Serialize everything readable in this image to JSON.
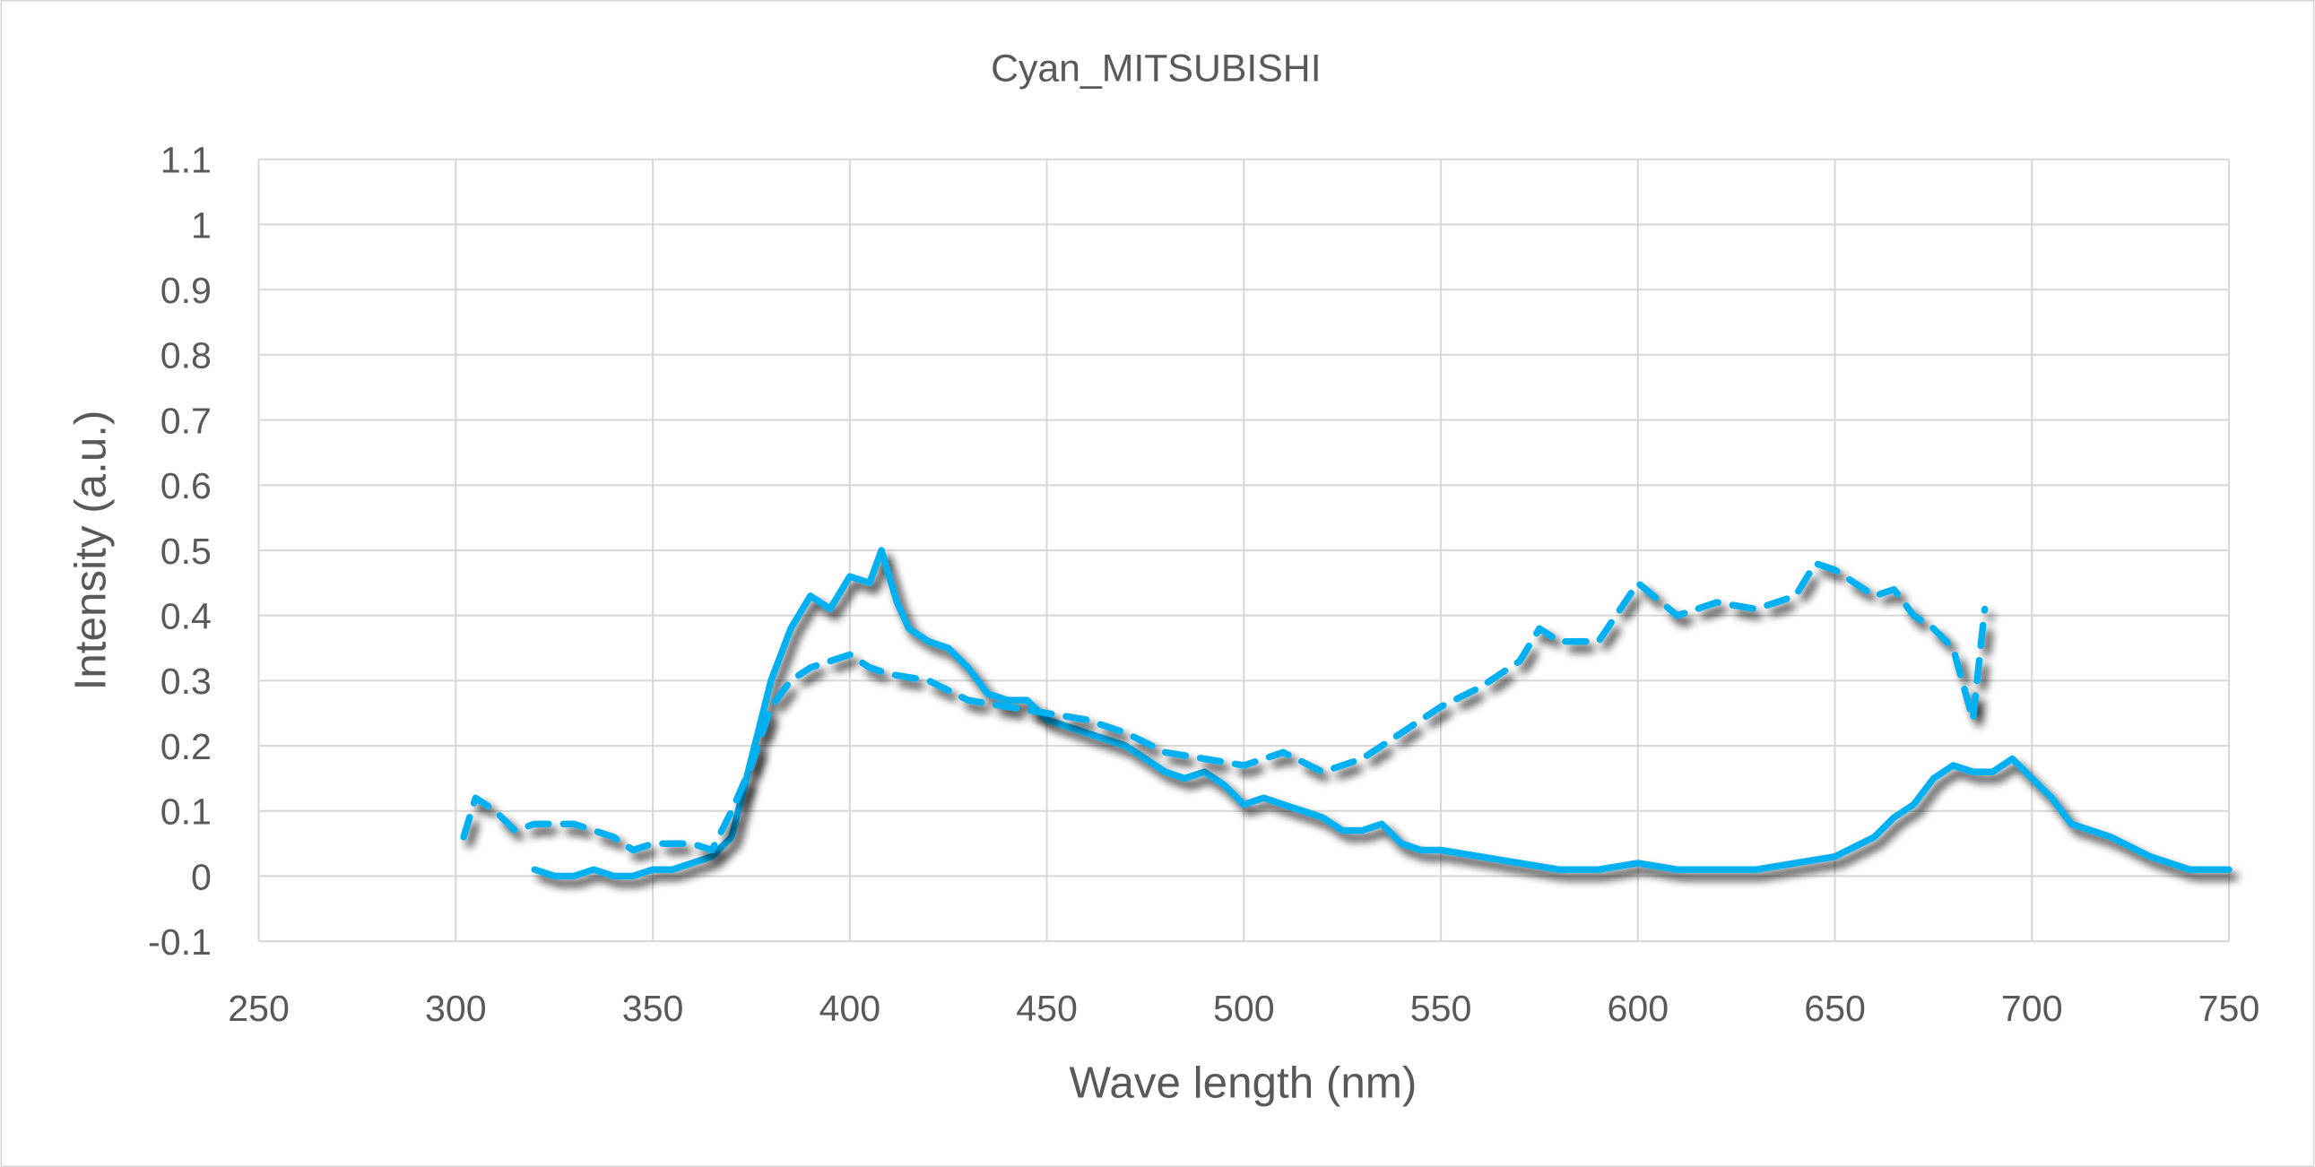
{
  "chart_data": {
    "type": "line",
    "title": "Cyan_MITSUBISHI",
    "xlabel": "Wave length (nm)",
    "ylabel": "Intensity (a.u.)",
    "xlim": [
      250,
      750
    ],
    "ylim": [
      -0.1,
      1.1
    ],
    "xticks": [
      "250",
      "300",
      "350",
      "400",
      "450",
      "500",
      "550",
      "600",
      "650",
      "700",
      "750"
    ],
    "yticks": [
      "-0.1",
      "0",
      "0.1",
      "0.2",
      "0.3",
      "0.4",
      "0.5",
      "0.6",
      "0.7",
      "0.8",
      "0.9",
      "1",
      "1.1"
    ],
    "grid": true,
    "line_color": "#00b0f0",
    "series": [
      {
        "name": "solid",
        "style": "solid",
        "x": [
          320,
          325,
          330,
          335,
          340,
          345,
          350,
          355,
          360,
          365,
          370,
          375,
          380,
          385,
          390,
          395,
          400,
          405,
          408,
          412,
          415,
          420,
          425,
          430,
          435,
          440,
          445,
          450,
          455,
          460,
          465,
          470,
          475,
          480,
          485,
          490,
          495,
          500,
          505,
          510,
          515,
          520,
          525,
          530,
          535,
          540,
          545,
          550,
          560,
          570,
          580,
          590,
          600,
          610,
          620,
          630,
          640,
          650,
          660,
          665,
          670,
          675,
          680,
          685,
          690,
          695,
          700,
          705,
          710,
          720,
          730,
          740,
          750
        ],
        "y": [
          0.01,
          0.0,
          0.0,
          0.01,
          0.0,
          0.0,
          0.01,
          0.01,
          0.02,
          0.03,
          0.06,
          0.18,
          0.3,
          0.38,
          0.43,
          0.41,
          0.46,
          0.45,
          0.5,
          0.42,
          0.38,
          0.36,
          0.35,
          0.32,
          0.28,
          0.27,
          0.27,
          0.24,
          0.23,
          0.22,
          0.21,
          0.2,
          0.18,
          0.16,
          0.15,
          0.16,
          0.14,
          0.11,
          0.12,
          0.11,
          0.1,
          0.09,
          0.07,
          0.07,
          0.08,
          0.05,
          0.04,
          0.04,
          0.03,
          0.02,
          0.01,
          0.01,
          0.02,
          0.01,
          0.01,
          0.01,
          0.02,
          0.03,
          0.06,
          0.09,
          0.11,
          0.15,
          0.17,
          0.16,
          0.16,
          0.18,
          0.15,
          0.12,
          0.08,
          0.06,
          0.03,
          0.01,
          0.01
        ]
      },
      {
        "name": "dashed",
        "style": "dashed",
        "x": [
          302,
          305,
          310,
          315,
          320,
          330,
          340,
          345,
          350,
          360,
          365,
          370,
          375,
          380,
          385,
          390,
          395,
          400,
          405,
          410,
          420,
          430,
          440,
          450,
          460,
          470,
          480,
          490,
          500,
          510,
          520,
          530,
          540,
          550,
          560,
          570,
          575,
          580,
          590,
          600,
          610,
          620,
          630,
          640,
          645,
          650,
          660,
          665,
          670,
          675,
          680,
          685,
          688
        ],
        "y": [
          0.06,
          0.12,
          0.1,
          0.07,
          0.08,
          0.08,
          0.06,
          0.04,
          0.05,
          0.05,
          0.04,
          0.1,
          0.17,
          0.26,
          0.3,
          0.32,
          0.33,
          0.34,
          0.32,
          0.31,
          0.3,
          0.27,
          0.26,
          0.25,
          0.24,
          0.22,
          0.19,
          0.18,
          0.17,
          0.19,
          0.16,
          0.18,
          0.22,
          0.26,
          0.29,
          0.33,
          0.38,
          0.36,
          0.36,
          0.45,
          0.4,
          0.42,
          0.41,
          0.43,
          0.48,
          0.47,
          0.43,
          0.44,
          0.4,
          0.38,
          0.35,
          0.24,
          0.41
        ]
      }
    ]
  }
}
